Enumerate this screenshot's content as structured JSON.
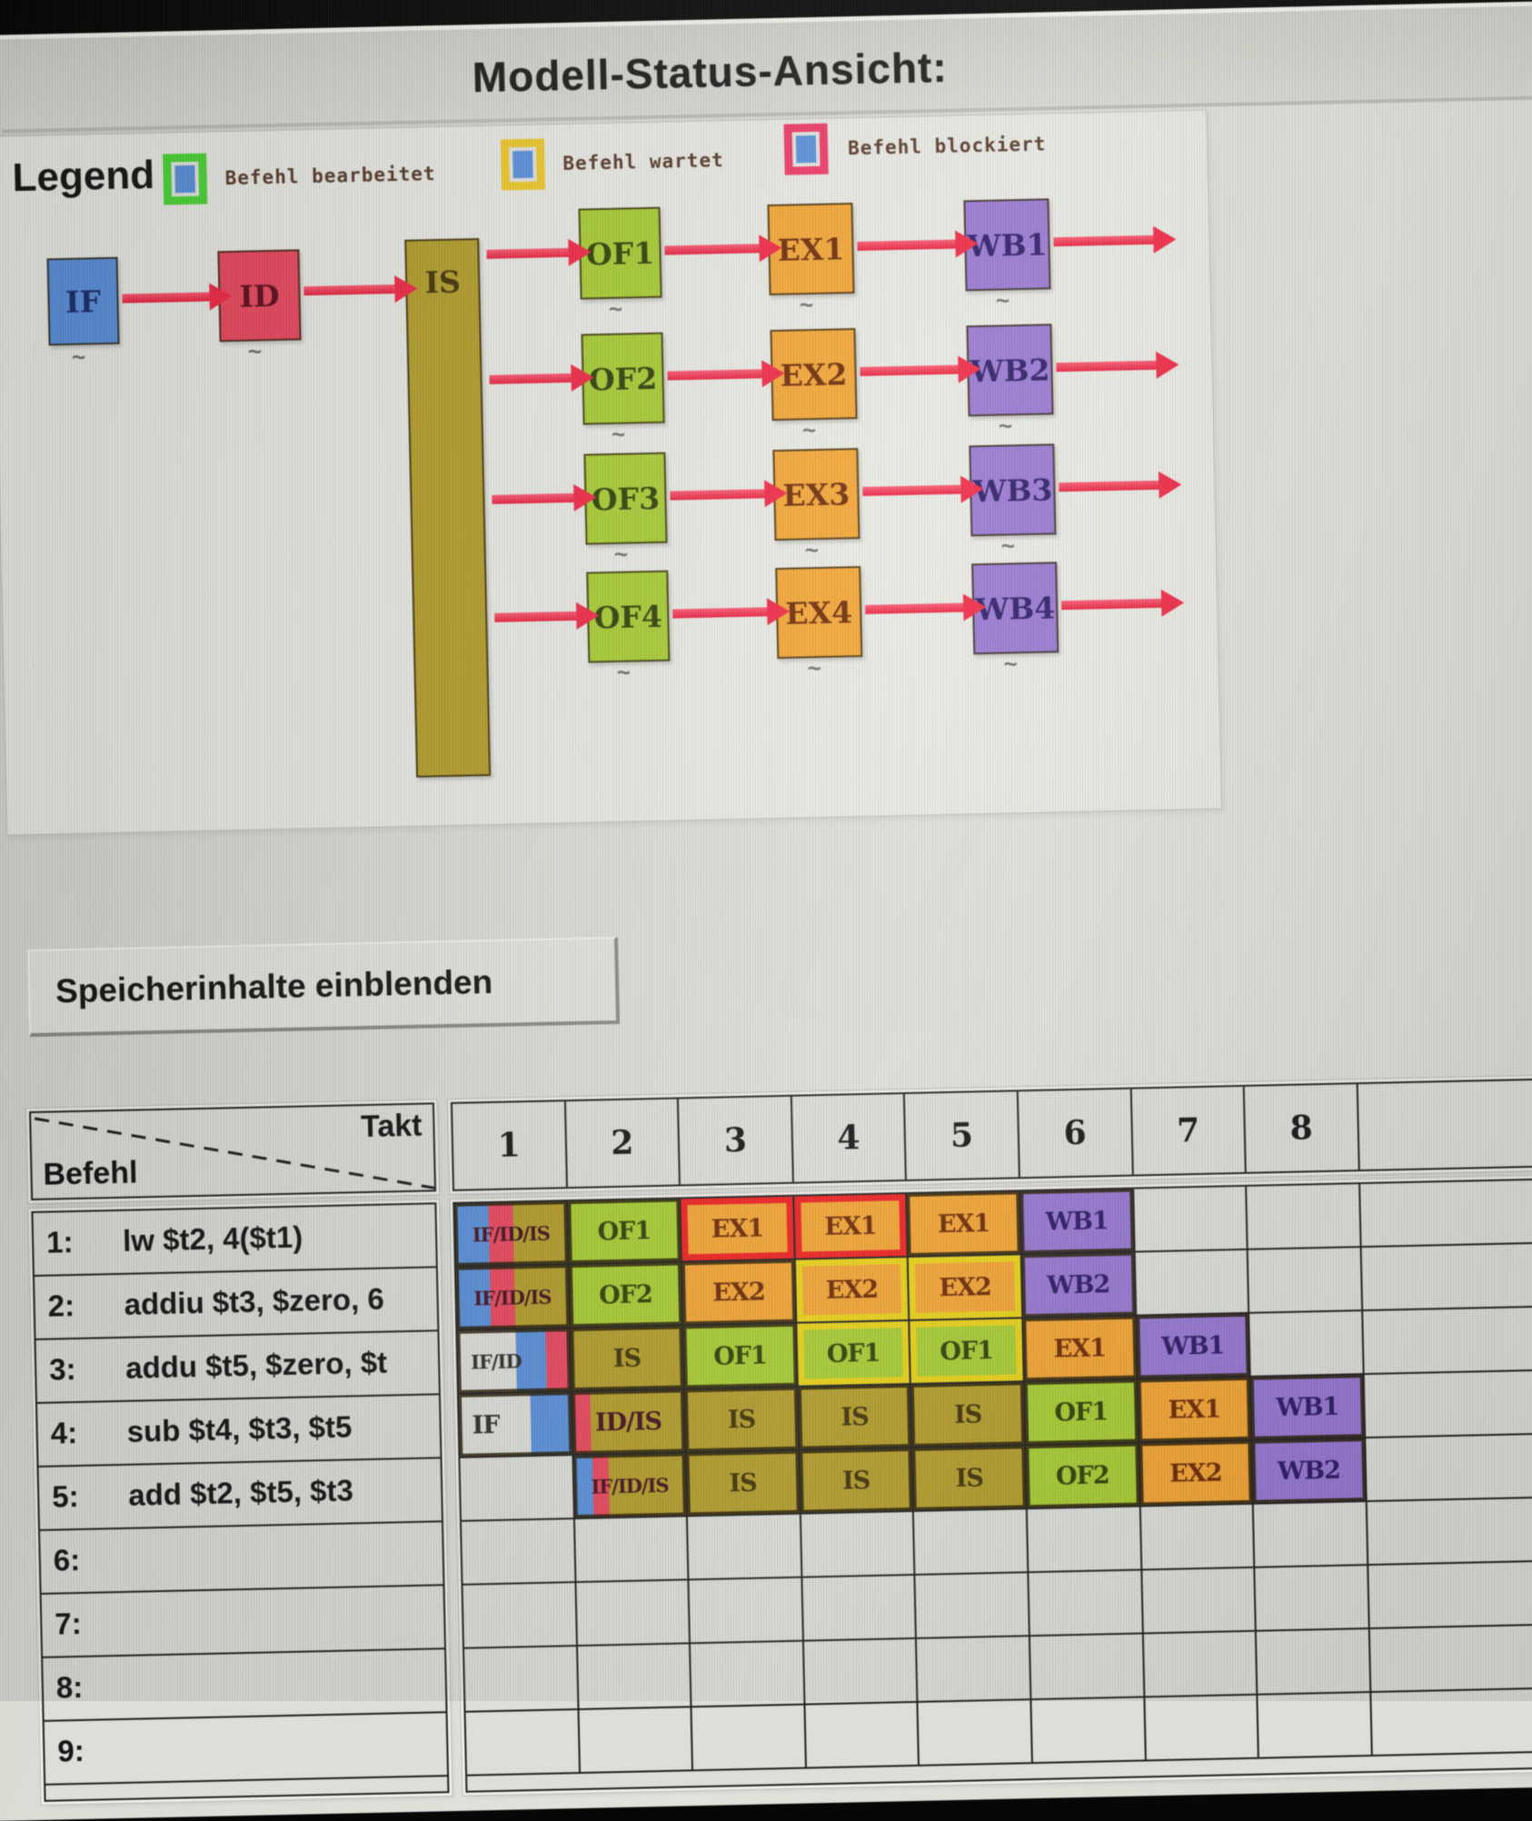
{
  "window": {
    "title": "Modell-Status-Ansicht:"
  },
  "legend": {
    "label": "Legend",
    "items": [
      {
        "label": "Befehl bearbeitet",
        "color": "legend_processed"
      },
      {
        "label": "Befehl wartet",
        "color": "legend_waiting"
      },
      {
        "label": "Befehl blockiert",
        "color": "legend_blocked"
      }
    ]
  },
  "palette": {
    "if": "#5c90d8",
    "id": "#e4495e",
    "is": "#b29d2e",
    "of": "#a8cb37",
    "ex": "#f0a438",
    "wb": "#9678cf",
    "white": "#dfdfda",
    "legend_processed": "#4fd33a",
    "legend_waiting": "#ecc92f",
    "legend_blocked": "#ea3a66",
    "blocked_border": "#e92222",
    "waiting_border": "#e8d21e",
    "arrow": "#ef3150"
  },
  "diagram": {
    "tilde_mark": "~",
    "stages": [
      {
        "label": "IF",
        "fill": "if",
        "col": 0,
        "row": 0
      },
      {
        "label": "ID",
        "fill": "id",
        "col": 1,
        "row": 0
      },
      {
        "label": "IS",
        "fill": "is",
        "col": 2,
        "row": 0,
        "tall": true
      },
      {
        "label": "OF1",
        "fill": "of",
        "col": 3,
        "row": 0
      },
      {
        "label": "EX1",
        "fill": "ex",
        "col": 4,
        "row": 0
      },
      {
        "label": "WB1",
        "fill": "wb",
        "col": 5,
        "row": 0
      },
      {
        "label": "OF2",
        "fill": "of",
        "col": 3,
        "row": 1
      },
      {
        "label": "EX2",
        "fill": "ex",
        "col": 4,
        "row": 1
      },
      {
        "label": "WB2",
        "fill": "wb",
        "col": 5,
        "row": 1
      },
      {
        "label": "OF3",
        "fill": "of",
        "col": 3,
        "row": 2
      },
      {
        "label": "EX3",
        "fill": "ex",
        "col": 4,
        "row": 2
      },
      {
        "label": "WB3",
        "fill": "wb",
        "col": 5,
        "row": 2
      },
      {
        "label": "OF4",
        "fill": "of",
        "col": 3,
        "row": 3
      },
      {
        "label": "EX4",
        "fill": "ex",
        "col": 4,
        "row": 3
      },
      {
        "label": "WB4",
        "fill": "wb",
        "col": 5,
        "row": 3
      }
    ]
  },
  "button": {
    "label": "Speicherinhalte einblenden"
  },
  "table": {
    "corner": {
      "col_axis": "Takt",
      "row_axis": "Befehl"
    },
    "cycles": [
      "1",
      "2",
      "3",
      "4",
      "5",
      "6",
      "7",
      "8"
    ],
    "instructions": [
      {
        "num": "1:",
        "text": "lw $t2, 4($t1)"
      },
      {
        "num": "2:",
        "text": "addiu $t3, $zero, 6"
      },
      {
        "num": "3:",
        "text": "addu $t5, $zero, $t"
      },
      {
        "num": "4:",
        "text": "sub $t4, $t3, $t5"
      },
      {
        "num": "5:",
        "text": "add $t2, $t5, $t3"
      },
      {
        "num": "6:",
        "text": ""
      },
      {
        "num": "7:",
        "text": ""
      },
      {
        "num": "8:",
        "text": ""
      },
      {
        "num": "9:",
        "text": ""
      }
    ],
    "grid_rows": [
      {
        "cells": [
          {
            "label": "IF/ID/IS",
            "stripes": [
              [
                "if",
                30
              ],
              [
                "id",
                22
              ],
              [
                "is",
                48
              ]
            ]
          },
          {
            "label": "OF1",
            "fill": "of"
          },
          {
            "label": "EX1",
            "fill": "ex",
            "state": "blocked"
          },
          {
            "label": "EX1",
            "fill": "ex",
            "state": "blocked"
          },
          {
            "label": "EX1",
            "fill": "ex"
          },
          {
            "label": "WB1",
            "fill": "wb"
          },
          null,
          null,
          null
        ]
      },
      {
        "cells": [
          {
            "label": "IF/ID/IS",
            "stripes": [
              [
                "if",
                30
              ],
              [
                "id",
                22
              ],
              [
                "is",
                48
              ]
            ]
          },
          {
            "label": "OF2",
            "fill": "of"
          },
          {
            "label": "EX2",
            "fill": "ex"
          },
          {
            "label": "EX2",
            "fill": "ex",
            "state": "waiting"
          },
          {
            "label": "EX2",
            "fill": "ex",
            "state": "waiting"
          },
          {
            "label": "WB2",
            "fill": "wb"
          },
          null,
          null,
          null
        ]
      },
      {
        "cells": [
          {
            "label": "IF/ID",
            "align": "left",
            "stripes": [
              [
                "white",
                52
              ],
              [
                "if",
                27
              ],
              [
                "id",
                21
              ]
            ]
          },
          {
            "label": "IS",
            "fill": "is"
          },
          {
            "label": "OF1",
            "fill": "of"
          },
          {
            "label": "OF1",
            "fill": "of",
            "state": "waiting"
          },
          {
            "label": "OF1",
            "fill": "of",
            "state": "waiting"
          },
          {
            "label": "EX1",
            "fill": "ex"
          },
          {
            "label": "WB1",
            "fill": "wb"
          },
          null,
          null
        ]
      },
      {
        "cells": [
          {
            "label": "IF",
            "align": "left",
            "stripes": [
              [
                "white",
                64
              ],
              [
                "if",
                36
              ]
            ]
          },
          {
            "label": "ID/IS",
            "stripes": [
              [
                "id",
                16
              ],
              [
                "is",
                84
              ]
            ]
          },
          {
            "label": "IS",
            "fill": "is"
          },
          {
            "label": "IS",
            "fill": "is"
          },
          {
            "label": "IS",
            "fill": "is"
          },
          {
            "label": "OF1",
            "fill": "of"
          },
          {
            "label": "EX1",
            "fill": "ex"
          },
          {
            "label": "WB1",
            "fill": "wb"
          },
          null
        ]
      },
      {
        "cells": [
          null,
          {
            "label": "IF/ID/IS",
            "stripes": [
              [
                "if",
                17
              ],
              [
                "id",
                14
              ],
              [
                "is",
                69
              ]
            ]
          },
          {
            "label": "IS",
            "fill": "is"
          },
          {
            "label": "IS",
            "fill": "is"
          },
          {
            "label": "IS",
            "fill": "is"
          },
          {
            "label": "OF2",
            "fill": "of"
          },
          {
            "label": "EX2",
            "fill": "ex"
          },
          {
            "label": "WB2",
            "fill": "wb"
          },
          null
        ]
      },
      {
        "cells": []
      },
      {
        "cells": []
      },
      {
        "cells": []
      },
      {
        "cells": []
      }
    ]
  }
}
